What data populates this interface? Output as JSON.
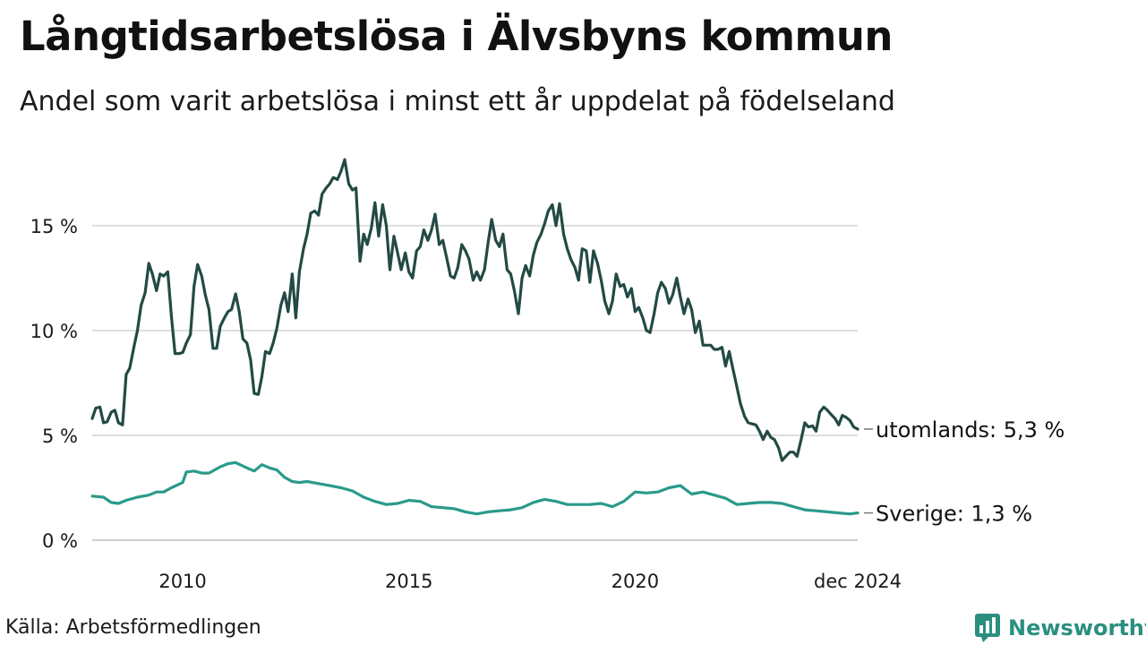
{
  "header": {
    "title": "Långtidsarbetslösa i Älvsbyns kommun",
    "subtitle": "Andel som varit arbetslösa i minst ett år uppdelat på födelseland"
  },
  "footer": {
    "source": "Källa: Arbetsförmedlingen",
    "brand": "Newsworthy",
    "brand_color": "#2a8f7f"
  },
  "chart_data": {
    "type": "line",
    "title": "Långtidsarbetslösa i Älvsbyns kommun",
    "subtitle": "Andel som varit arbetslösa i minst ett år uppdelat på födelseland",
    "xlabel": "",
    "ylabel": "",
    "x_ticks": [
      {
        "label": "2010",
        "t": 2010.0
      },
      {
        "label": "2015",
        "t": 2015.0
      },
      {
        "label": "2020",
        "t": 2020.0
      },
      {
        "label": "dec 2024",
        "t": 2024.92
      }
    ],
    "x_range": [
      2008.0,
      2024.92
    ],
    "y_ticks": [
      {
        "label": "0 %",
        "value": 0
      },
      {
        "label": "5 %",
        "value": 5
      },
      {
        "label": "10 %",
        "value": 10
      },
      {
        "label": "15 %",
        "value": 15
      }
    ],
    "ylim": [
      0,
      18.5
    ],
    "grid": true,
    "series": [
      {
        "name": "utomlands",
        "end_label": "utomlands: 5,3 %",
        "color": "#234a44",
        "points": [
          [
            2008.0,
            5.8
          ],
          [
            2008.08,
            6.3
          ],
          [
            2008.17,
            6.35
          ],
          [
            2008.25,
            5.6
          ],
          [
            2008.33,
            5.65
          ],
          [
            2008.42,
            6.1
          ],
          [
            2008.5,
            6.2
          ],
          [
            2008.58,
            5.6
          ],
          [
            2008.67,
            5.5
          ],
          [
            2008.75,
            7.9
          ],
          [
            2008.83,
            8.2
          ],
          [
            2008.92,
            9.2
          ],
          [
            2009.0,
            10.0
          ],
          [
            2009.08,
            11.2
          ],
          [
            2009.17,
            11.8
          ],
          [
            2009.25,
            13.2
          ],
          [
            2009.33,
            12.7
          ],
          [
            2009.42,
            11.9
          ],
          [
            2009.5,
            12.7
          ],
          [
            2009.58,
            12.6
          ],
          [
            2009.67,
            12.8
          ],
          [
            2009.75,
            10.7
          ],
          [
            2009.83,
            8.9
          ],
          [
            2009.92,
            8.9
          ],
          [
            2010.0,
            8.95
          ],
          [
            2010.08,
            9.4
          ],
          [
            2010.17,
            9.8
          ],
          [
            2010.25,
            12.1
          ],
          [
            2010.33,
            13.15
          ],
          [
            2010.42,
            12.6
          ],
          [
            2010.5,
            11.7
          ],
          [
            2010.58,
            11.0
          ],
          [
            2010.67,
            9.15
          ],
          [
            2010.75,
            9.15
          ],
          [
            2010.83,
            10.2
          ],
          [
            2010.92,
            10.6
          ],
          [
            2011.0,
            10.9
          ],
          [
            2011.08,
            11.0
          ],
          [
            2011.17,
            11.75
          ],
          [
            2011.25,
            10.9
          ],
          [
            2011.33,
            9.6
          ],
          [
            2011.42,
            9.4
          ],
          [
            2011.5,
            8.6
          ],
          [
            2011.58,
            7.0
          ],
          [
            2011.67,
            6.95
          ],
          [
            2011.75,
            7.8
          ],
          [
            2011.83,
            9.0
          ],
          [
            2011.92,
            8.9
          ],
          [
            2012.0,
            9.4
          ],
          [
            2012.08,
            10.1
          ],
          [
            2012.17,
            11.2
          ],
          [
            2012.25,
            11.8
          ],
          [
            2012.33,
            10.9
          ],
          [
            2012.42,
            12.7
          ],
          [
            2012.5,
            10.6
          ],
          [
            2012.58,
            12.8
          ],
          [
            2012.67,
            13.9
          ],
          [
            2012.75,
            14.6
          ],
          [
            2012.83,
            15.6
          ],
          [
            2012.92,
            15.7
          ],
          [
            2013.0,
            15.5
          ],
          [
            2013.08,
            16.5
          ],
          [
            2013.17,
            16.8
          ],
          [
            2013.25,
            17.0
          ],
          [
            2013.33,
            17.3
          ],
          [
            2013.42,
            17.2
          ],
          [
            2013.5,
            17.6
          ],
          [
            2013.58,
            18.15
          ],
          [
            2013.67,
            17.0
          ],
          [
            2013.75,
            16.7
          ],
          [
            2013.83,
            16.8
          ],
          [
            2013.92,
            13.3
          ],
          [
            2014.0,
            14.6
          ],
          [
            2014.08,
            14.1
          ],
          [
            2014.17,
            14.9
          ],
          [
            2014.25,
            16.1
          ],
          [
            2014.33,
            14.5
          ],
          [
            2014.42,
            16.0
          ],
          [
            2014.5,
            15.0
          ],
          [
            2014.58,
            12.9
          ],
          [
            2014.67,
            14.5
          ],
          [
            2014.75,
            13.7
          ],
          [
            2014.83,
            12.9
          ],
          [
            2014.92,
            13.7
          ],
          [
            2015.0,
            12.8
          ],
          [
            2015.08,
            12.5
          ],
          [
            2015.17,
            13.8
          ],
          [
            2015.25,
            14.0
          ],
          [
            2015.33,
            14.8
          ],
          [
            2015.42,
            14.3
          ],
          [
            2015.5,
            14.8
          ],
          [
            2015.58,
            15.55
          ],
          [
            2015.67,
            14.1
          ],
          [
            2015.75,
            14.3
          ],
          [
            2015.83,
            13.5
          ],
          [
            2015.92,
            12.6
          ],
          [
            2016.0,
            12.5
          ],
          [
            2016.08,
            13.0
          ],
          [
            2016.17,
            14.1
          ],
          [
            2016.25,
            13.8
          ],
          [
            2016.33,
            13.4
          ],
          [
            2016.42,
            12.4
          ],
          [
            2016.5,
            12.8
          ],
          [
            2016.58,
            12.4
          ],
          [
            2016.67,
            12.9
          ],
          [
            2016.75,
            14.2
          ],
          [
            2016.83,
            15.3
          ],
          [
            2016.92,
            14.3
          ],
          [
            2017.0,
            14.0
          ],
          [
            2017.08,
            14.6
          ],
          [
            2017.17,
            12.9
          ],
          [
            2017.25,
            12.7
          ],
          [
            2017.33,
            11.9
          ],
          [
            2017.42,
            10.8
          ],
          [
            2017.5,
            12.5
          ],
          [
            2017.58,
            13.1
          ],
          [
            2017.67,
            12.6
          ],
          [
            2017.75,
            13.6
          ],
          [
            2017.83,
            14.2
          ],
          [
            2017.92,
            14.6
          ],
          [
            2018.0,
            15.1
          ],
          [
            2018.08,
            15.7
          ],
          [
            2018.17,
            16.0
          ],
          [
            2018.25,
            15.0
          ],
          [
            2018.33,
            16.05
          ],
          [
            2018.42,
            14.6
          ],
          [
            2018.5,
            13.9
          ],
          [
            2018.58,
            13.4
          ],
          [
            2018.67,
            13.0
          ],
          [
            2018.75,
            12.4
          ],
          [
            2018.83,
            13.9
          ],
          [
            2018.92,
            13.8
          ],
          [
            2019.0,
            12.3
          ],
          [
            2019.08,
            13.8
          ],
          [
            2019.17,
            13.2
          ],
          [
            2019.25,
            12.4
          ],
          [
            2019.33,
            11.4
          ],
          [
            2019.42,
            10.8
          ],
          [
            2019.5,
            11.4
          ],
          [
            2019.58,
            12.7
          ],
          [
            2019.67,
            12.1
          ],
          [
            2019.75,
            12.2
          ],
          [
            2019.83,
            11.6
          ],
          [
            2019.92,
            12.0
          ],
          [
            2020.0,
            10.9
          ],
          [
            2020.08,
            11.1
          ],
          [
            2020.17,
            10.6
          ],
          [
            2020.25,
            10.0
          ],
          [
            2020.33,
            9.9
          ],
          [
            2020.42,
            10.8
          ],
          [
            2020.5,
            11.8
          ],
          [
            2020.58,
            12.3
          ],
          [
            2020.67,
            12.0
          ],
          [
            2020.75,
            11.3
          ],
          [
            2020.83,
            11.7
          ],
          [
            2020.92,
            12.5
          ],
          [
            2021.0,
            11.6
          ],
          [
            2021.08,
            10.8
          ],
          [
            2021.17,
            11.5
          ],
          [
            2021.25,
            11.0
          ],
          [
            2021.33,
            9.9
          ],
          [
            2021.42,
            10.45
          ],
          [
            2021.5,
            9.3
          ],
          [
            2021.58,
            9.3
          ],
          [
            2021.67,
            9.3
          ],
          [
            2021.75,
            9.1
          ],
          [
            2021.83,
            9.1
          ],
          [
            2021.92,
            9.2
          ],
          [
            2022.0,
            8.3
          ],
          [
            2022.08,
            9.0
          ],
          [
            2022.17,
            8.1
          ],
          [
            2022.25,
            7.3
          ],
          [
            2022.33,
            6.5
          ],
          [
            2022.42,
            5.9
          ],
          [
            2022.5,
            5.6
          ],
          [
            2022.58,
            5.55
          ],
          [
            2022.67,
            5.5
          ],
          [
            2022.75,
            5.2
          ],
          [
            2022.83,
            4.8
          ],
          [
            2022.92,
            5.2
          ],
          [
            2023.0,
            4.9
          ],
          [
            2023.08,
            4.8
          ],
          [
            2023.17,
            4.4
          ],
          [
            2023.25,
            3.8
          ],
          [
            2023.33,
            4.0
          ],
          [
            2023.42,
            4.2
          ],
          [
            2023.5,
            4.2
          ],
          [
            2023.58,
            4.0
          ],
          [
            2023.67,
            4.8
          ],
          [
            2023.75,
            5.6
          ],
          [
            2023.83,
            5.4
          ],
          [
            2023.92,
            5.45
          ],
          [
            2024.0,
            5.2
          ],
          [
            2024.08,
            6.1
          ],
          [
            2024.17,
            6.35
          ],
          [
            2024.25,
            6.2
          ],
          [
            2024.33,
            6.0
          ],
          [
            2024.42,
            5.8
          ],
          [
            2024.5,
            5.5
          ],
          [
            2024.58,
            5.95
          ],
          [
            2024.67,
            5.85
          ],
          [
            2024.75,
            5.7
          ],
          [
            2024.83,
            5.4
          ],
          [
            2024.92,
            5.3
          ]
        ]
      },
      {
        "name": "Sverige",
        "end_label": "Sverige: 1,3 %",
        "color": "#2a9a8a",
        "points": [
          [
            2008.0,
            2.1
          ],
          [
            2008.25,
            2.05
          ],
          [
            2008.42,
            1.8
          ],
          [
            2008.58,
            1.75
          ],
          [
            2008.75,
            1.9
          ],
          [
            2009.0,
            2.05
          ],
          [
            2009.25,
            2.15
          ],
          [
            2009.42,
            2.3
          ],
          [
            2009.58,
            2.3
          ],
          [
            2009.75,
            2.5
          ],
          [
            2010.0,
            2.75
          ],
          [
            2010.08,
            3.25
          ],
          [
            2010.25,
            3.3
          ],
          [
            2010.42,
            3.2
          ],
          [
            2010.58,
            3.2
          ],
          [
            2010.83,
            3.5
          ],
          [
            2011.0,
            3.65
          ],
          [
            2011.17,
            3.7
          ],
          [
            2011.42,
            3.45
          ],
          [
            2011.58,
            3.3
          ],
          [
            2011.75,
            3.6
          ],
          [
            2011.92,
            3.45
          ],
          [
            2012.08,
            3.35
          ],
          [
            2012.25,
            3.0
          ],
          [
            2012.42,
            2.8
          ],
          [
            2012.58,
            2.75
          ],
          [
            2012.75,
            2.8
          ],
          [
            2013.0,
            2.7
          ],
          [
            2013.25,
            2.6
          ],
          [
            2013.5,
            2.5
          ],
          [
            2013.75,
            2.35
          ],
          [
            2014.0,
            2.05
          ],
          [
            2014.25,
            1.85
          ],
          [
            2014.5,
            1.7
          ],
          [
            2014.75,
            1.75
          ],
          [
            2015.0,
            1.9
          ],
          [
            2015.25,
            1.85
          ],
          [
            2015.5,
            1.6
          ],
          [
            2015.75,
            1.55
          ],
          [
            2016.0,
            1.5
          ],
          [
            2016.25,
            1.35
          ],
          [
            2016.5,
            1.25
          ],
          [
            2016.75,
            1.35
          ],
          [
            2017.0,
            1.4
          ],
          [
            2017.25,
            1.45
          ],
          [
            2017.5,
            1.55
          ],
          [
            2017.75,
            1.8
          ],
          [
            2018.0,
            1.95
          ],
          [
            2018.25,
            1.85
          ],
          [
            2018.5,
            1.7
          ],
          [
            2018.75,
            1.7
          ],
          [
            2019.0,
            1.7
          ],
          [
            2019.25,
            1.75
          ],
          [
            2019.5,
            1.6
          ],
          [
            2019.75,
            1.85
          ],
          [
            2020.0,
            2.3
          ],
          [
            2020.25,
            2.25
          ],
          [
            2020.5,
            2.3
          ],
          [
            2020.75,
            2.5
          ],
          [
            2021.0,
            2.6
          ],
          [
            2021.25,
            2.2
          ],
          [
            2021.5,
            2.3
          ],
          [
            2021.75,
            2.15
          ],
          [
            2022.0,
            2.0
          ],
          [
            2022.25,
            1.7
          ],
          [
            2022.5,
            1.75
          ],
          [
            2022.75,
            1.8
          ],
          [
            2023.0,
            1.8
          ],
          [
            2023.25,
            1.75
          ],
          [
            2023.5,
            1.6
          ],
          [
            2023.75,
            1.45
          ],
          [
            2024.0,
            1.4
          ],
          [
            2024.25,
            1.35
          ],
          [
            2024.5,
            1.3
          ],
          [
            2024.75,
            1.25
          ],
          [
            2024.92,
            1.3
          ]
        ]
      }
    ]
  }
}
